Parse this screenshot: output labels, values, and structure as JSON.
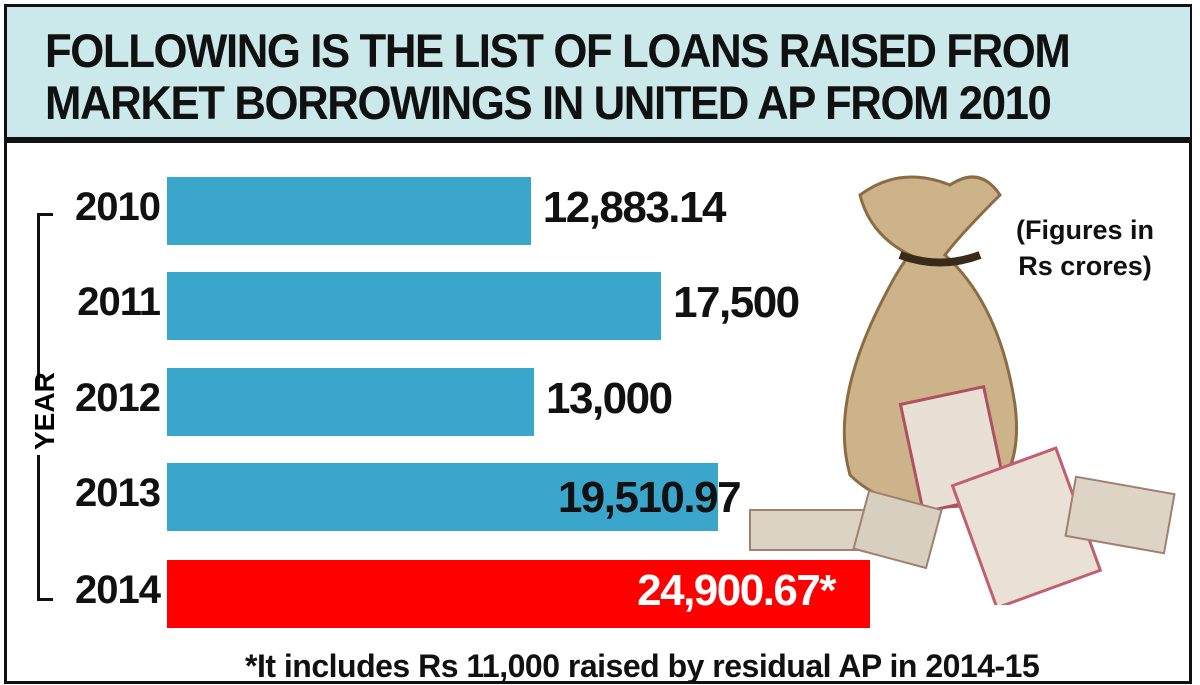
{
  "chart_data": {
    "type": "bar",
    "orientation": "horizontal",
    "title": "FOLLOWING IS THE LIST OF LOANS RAISED FROM MARKET BORROWINGS IN UNITED AP FROM 2010",
    "ylabel": "YEAR",
    "unit_note": "(Figures in Rs crores)",
    "categories": [
      "2010",
      "2011",
      "2012",
      "2013",
      "2014"
    ],
    "values": [
      12883.14,
      17500,
      13000,
      19510.97,
      24900.67
    ],
    "data_labels": [
      "12,883.14",
      "17,500",
      "13,000",
      "19,510.97",
      "24,900.67*"
    ],
    "colors": [
      "#3aa6cc",
      "#3aa6cc",
      "#3aa6cc",
      "#3aa6cc",
      "#ff0000"
    ],
    "xlim": [
      0,
      24900.67
    ],
    "footnote": "*It includes Rs 11,000 raised by residual AP in 2014-15",
    "grid": false
  }
}
